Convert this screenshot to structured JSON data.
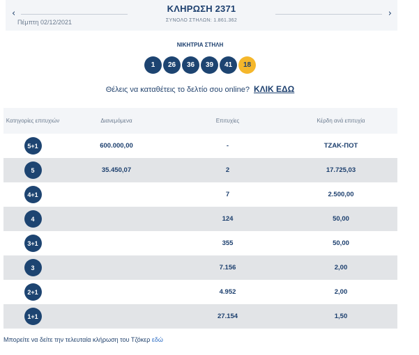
{
  "header": {
    "prev_arrow": "‹",
    "next_arrow": "›",
    "date": "Πέμπτη 02/12/2021",
    "draw_title": "ΚΛΗΡΩΣΗ 2371",
    "total_columns": "ΣΥΝΟΛΟ ΣΤΗΛΩΝ: 1.861.362"
  },
  "winning": {
    "title": "ΝΙΚΗΤΡΙΑ ΣΤΗΛΗ",
    "numbers": [
      "1",
      "26",
      "36",
      "39",
      "41"
    ],
    "joker": "18"
  },
  "online": {
    "text": "Θέλεις να καταθέτεις το δελτίο σου online?",
    "link": "ΚΛΙΚ ΕΔΩ"
  },
  "table": {
    "headers": [
      "Κατηγορίες επιτυχιών",
      "Διανεμόμενα",
      "Επιτυχίες",
      "Κέρδη ανά επιτυχία"
    ],
    "rows": [
      {
        "category": "5+1",
        "distributed": "600.000,00",
        "winners": "-",
        "prize": "ΤΖΑΚ-ΠΟΤ"
      },
      {
        "category": "5",
        "distributed": "35.450,07",
        "winners": "2",
        "prize": "17.725,03"
      },
      {
        "category": "4+1",
        "distributed": "",
        "winners": "7",
        "prize": "2.500,00"
      },
      {
        "category": "4",
        "distributed": "",
        "winners": "124",
        "prize": "50,00"
      },
      {
        "category": "3+1",
        "distributed": "",
        "winners": "355",
        "prize": "50,00"
      },
      {
        "category": "3",
        "distributed": "",
        "winners": "7.156",
        "prize": "2,00"
      },
      {
        "category": "2+1",
        "distributed": "",
        "winners": "4.952",
        "prize": "2,00"
      },
      {
        "category": "1+1",
        "distributed": "",
        "winners": "27.154",
        "prize": "1,50"
      }
    ]
  },
  "footer": {
    "text": "Μπορείτε να δείτε την τελευταία κλήρωση του Τζόκερ",
    "link": "εδώ"
  },
  "colors": {
    "navy": "#1d4471",
    "joker_yellow": "#f5b72b",
    "row_shade": "#e2e4e7",
    "header_bg": "#f3f5f8",
    "link_blue": "#2b6cc4"
  }
}
